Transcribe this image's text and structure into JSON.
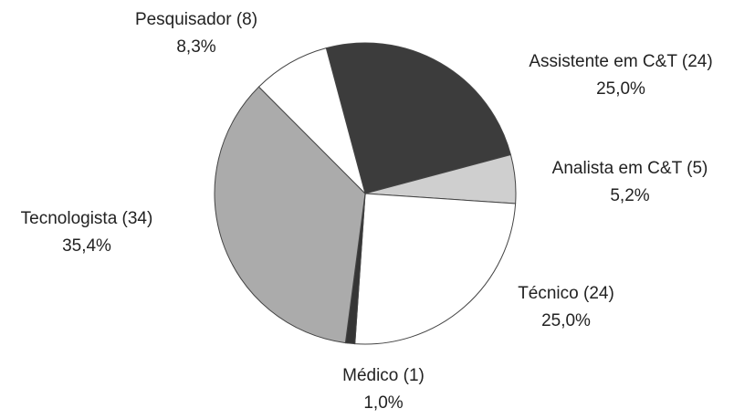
{
  "chart_data": {
    "type": "pie",
    "categories": [
      "Assistente em C&T (24)",
      "Analista em C&T (5)",
      "Técnico (24)",
      "Médico (1)",
      "Tecnologista (34)",
      "Pesquisador (8)"
    ],
    "values": [
      25.0,
      5.2,
      25.0,
      1.0,
      35.4,
      8.3
    ],
    "value_labels": [
      "25,0%",
      "5,2%",
      "25,0%",
      "1,0%",
      "35,4%",
      "8,3%"
    ],
    "colors": [
      "#3c3c3c",
      "#cfcfcf",
      "#ffffff",
      "#353535",
      "#ababab",
      "#ffffff"
    ]
  }
}
